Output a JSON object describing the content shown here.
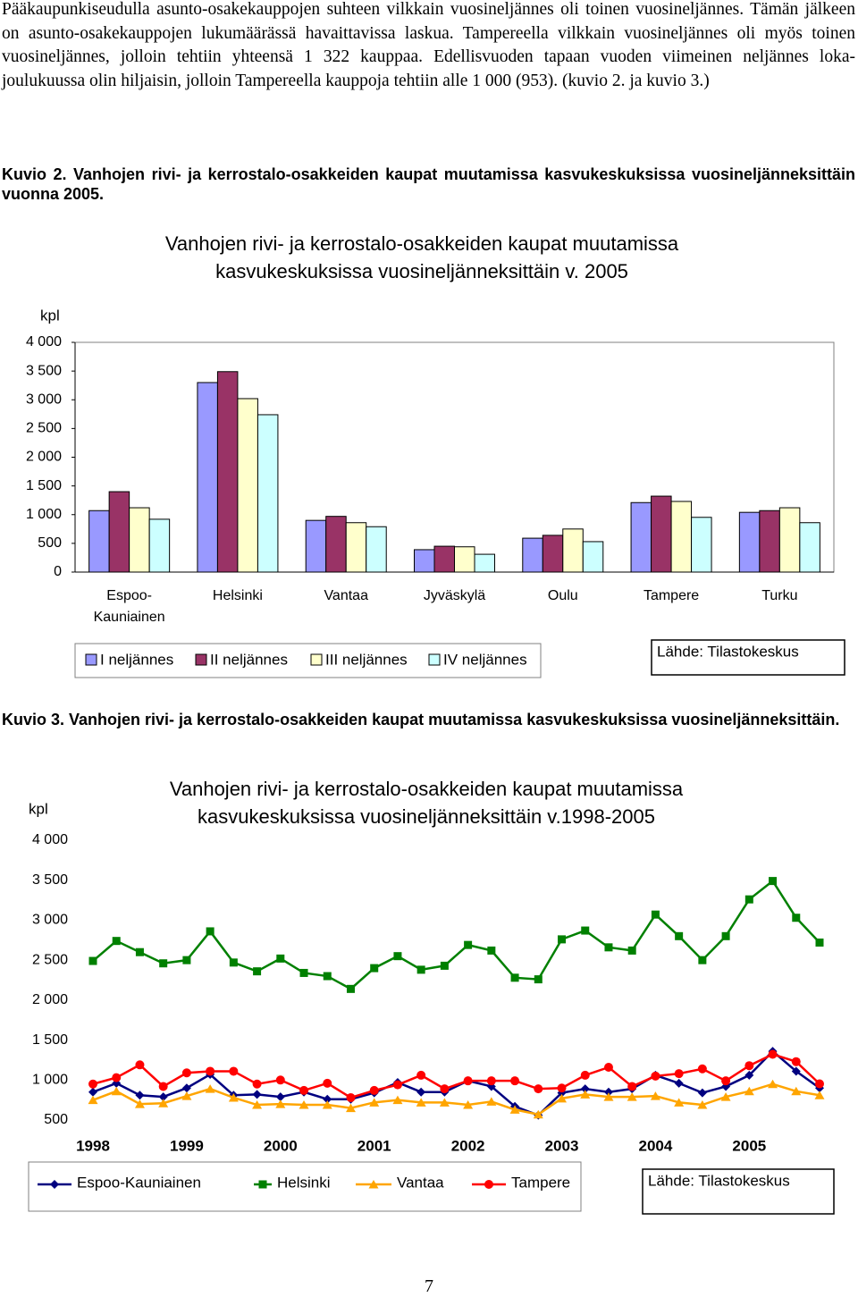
{
  "paragraph": "Pääkaupunkiseudulla asunto-osakekauppojen suhteen vilkkain vuosineljännes oli toinen vuosineljännes. Tämän jälkeen on asunto-osakekauppojen lukumäärässä havaittavissa laskua. Tampereella vilkkain vuosineljännes oli myös toinen vuosineljännes, jolloin tehtiin yhteensä 1 322 kauppaa. Edellisvuoden tapaan vuoden viimeinen neljännes loka-joulukuussa olin hiljaisin, jolloin Tampereella kauppoja tehtiin alle 1 000 (953). (kuvio 2. ja kuvio 3.)",
  "caption_2": "Kuvio 2. Vanhojen rivi- ja kerrostalo-osakkeiden kaupat muutamissa kasvukeskuksissa vuosineljänneksittäin vuonna 2005.",
  "caption_3": "Kuvio 3. Vanhojen rivi- ja kerrostalo-osakkeiden kaupat muutamissa kasvukeskuksissa vuosineljänneksittäin.",
  "page_number": "7",
  "chart_data": [
    {
      "type": "bar",
      "title": [
        "Vanhojen rivi- ja kerrostalo-osakkeiden kaupat muutamissa",
        "kasvukeskuksissa vuosineljänneksittäin v. 2005"
      ],
      "y_label": "kpl",
      "source": "Lähde: Tilastokeskus",
      "legend": "bottom",
      "grid": false,
      "ylim": [
        0,
        4000
      ],
      "yticks": [
        0,
        500,
        {
          "value": 1000,
          "label": "1 000"
        },
        {
          "value": 1500,
          "label": "1 500"
        },
        {
          "value": 2000,
          "label": "2 000"
        },
        {
          "value": 2500,
          "label": "2 500"
        },
        {
          "value": 3000,
          "label": "3 000"
        },
        {
          "value": 3500,
          "label": "3 500"
        },
        {
          "value": 4000,
          "label": "4 000"
        }
      ],
      "categories": [
        "Espoo-Kauniainen",
        "Helsinki",
        "Vantaa",
        "Jyväskylä",
        "Oulu",
        "Tampere",
        "Turku"
      ],
      "series": [
        {
          "name": "I neljännes",
          "color": "#9999ff",
          "values": [
            1070,
            3300,
            900,
            390,
            590,
            1210,
            1040
          ]
        },
        {
          "name": "II neljännes",
          "color": "#993366",
          "values": [
            1400,
            3490,
            970,
            450,
            640,
            1322,
            1070
          ]
        },
        {
          "name": "III neljännes",
          "color": "#ffffcc",
          "values": [
            1120,
            3020,
            860,
            440,
            750,
            1230,
            1120
          ]
        },
        {
          "name": "IV neljännes",
          "color": "#ccffff",
          "values": [
            920,
            2740,
            790,
            310,
            530,
            953,
            860
          ]
        }
      ]
    },
    {
      "type": "line",
      "title": [
        "Vanhojen rivi- ja kerrostalo-osakkeiden kaupat muutamissa",
        "kasvukeskuksissa vuosineljänneksittäin v.1998-2005"
      ],
      "y_label": "kpl",
      "source": "Lähde: Tilastokeskus",
      "legend": "bottom",
      "grid": false,
      "ylim": [
        500,
        4000
      ],
      "yticks": [
        500,
        {
          "value": 1000,
          "label": "1 000"
        },
        {
          "value": 1500,
          "label": "1 500"
        },
        {
          "value": 2000,
          "label": "2 000"
        },
        {
          "value": 2500,
          "label": "2 500"
        },
        {
          "value": 3000,
          "label": "3 000"
        },
        {
          "value": 3500,
          "label": "3 500"
        },
        {
          "value": 4000,
          "label": "4 000"
        }
      ],
      "categories": [
        "1998",
        null,
        null,
        null,
        "1999",
        null,
        null,
        null,
        "2000",
        null,
        null,
        null,
        "2001",
        null,
        null,
        null,
        "2002",
        null,
        null,
        null,
        "2003",
        null,
        null,
        null,
        "2004",
        null,
        null,
        null,
        "2005",
        null,
        null,
        null
      ],
      "series": [
        {
          "name": "Espoo-Kauniainen",
          "color": "#000080",
          "marker": "diamond",
          "values": [
            850,
            960,
            810,
            790,
            900,
            1070,
            810,
            820,
            790,
            850,
            760,
            760,
            840,
            970,
            850,
            850,
            990,
            920,
            670,
            560,
            840,
            890,
            850,
            890,
            1060,
            960,
            840,
            920,
            1060,
            1360,
            1110,
            900
          ]
        },
        {
          "name": "Helsinki",
          "color": "#008000",
          "marker": "square",
          "values": [
            2490,
            2740,
            2600,
            2460,
            2500,
            2860,
            2470,
            2360,
            2520,
            2340,
            2300,
            2140,
            2400,
            2550,
            2380,
            2430,
            2690,
            2620,
            2280,
            2260,
            2760,
            2870,
            2660,
            2620,
            3070,
            2800,
            2500,
            2800,
            3260,
            3490,
            3030,
            2720
          ]
        },
        {
          "name": "Vantaa",
          "color": "#ffa500",
          "marker": "triangle",
          "values": [
            750,
            860,
            700,
            710,
            800,
            890,
            780,
            690,
            700,
            690,
            690,
            650,
            720,
            750,
            720,
            720,
            690,
            730,
            630,
            570,
            770,
            820,
            790,
            790,
            800,
            720,
            690,
            790,
            860,
            950,
            860,
            810
          ]
        },
        {
          "name": "Tampere",
          "color": "#ff0000",
          "marker": "circle",
          "values": [
            950,
            1030,
            1190,
            920,
            1090,
            1110,
            1110,
            950,
            1000,
            870,
            960,
            780,
            870,
            940,
            1060,
            890,
            990,
            990,
            990,
            890,
            900,
            1060,
            1160,
            920,
            1050,
            1080,
            1140,
            990,
            1180,
            1322,
            1230,
            953
          ]
        }
      ]
    }
  ]
}
